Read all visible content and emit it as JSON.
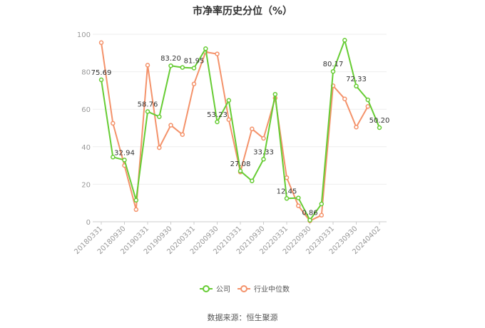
{
  "chart_data": {
    "type": "line",
    "title": "市净率历史分位（%）",
    "source": "数据来源：恒生聚源",
    "ylim": [
      0,
      100
    ],
    "yticks": [
      0,
      20,
      40,
      60,
      80,
      100
    ],
    "grid": true,
    "legend_position": "bottom",
    "x_tick_labels": [
      "20180331",
      "20180930",
      "20190331",
      "20190930",
      "20200331",
      "20200930",
      "20210331",
      "20210930",
      "20220331",
      "20220930",
      "20230331",
      "20230930",
      "20240402"
    ],
    "colors": {
      "company": "#66cc33",
      "industry": "#f4926a"
    },
    "series": [
      {
        "name": "公司",
        "values": [
          75.69,
          34.5,
          32.94,
          11.5,
          58.76,
          56.0,
          83.2,
          82.3,
          81.95,
          92.3,
          53.23,
          64.7,
          27.08,
          21.8,
          33.33,
          68.0,
          12.45,
          12.7,
          0.86,
          9.5,
          80.17,
          96.8,
          72.33,
          65.0,
          50.2
        ],
        "labels": [
          "75.69",
          "",
          "32.94",
          "",
          "58.76",
          "",
          "83.20",
          "",
          "81.95",
          "",
          "53.23",
          "",
          "27.08",
          "",
          "33.33",
          "",
          "12.45",
          "",
          "0.86",
          "",
          "80.17",
          "",
          "72.33",
          "",
          "50.20"
        ]
      },
      {
        "name": "行业中位数",
        "values": [
          95.5,
          52.5,
          30.0,
          6.5,
          83.5,
          39.5,
          51.5,
          46.5,
          73.5,
          90.5,
          89.5,
          54.5,
          26.5,
          49.5,
          44.5,
          66.0,
          23.5,
          8.5,
          0.5,
          3.5,
          72.5,
          65.5,
          50.5,
          61.5,
          null
        ],
        "labels": []
      }
    ]
  }
}
